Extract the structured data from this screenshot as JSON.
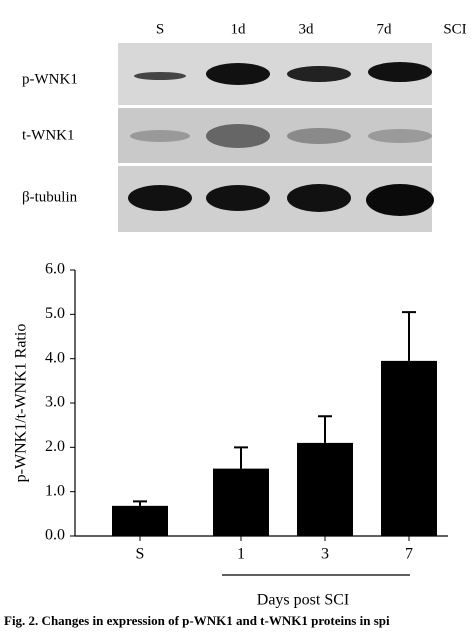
{
  "blot": {
    "lanes": [
      "S",
      "1d",
      "3d",
      "7d",
      "SCI"
    ],
    "rows": [
      "p-WNK1",
      "t-WNK1",
      "β-tubulin"
    ]
  },
  "chart_data": {
    "type": "bar",
    "categories": [
      "S",
      "1",
      "3",
      "7"
    ],
    "values": [
      0.68,
      1.52,
      2.1,
      3.95
    ],
    "errors": [
      0.1,
      0.48,
      0.6,
      1.1
    ],
    "color": "#000000",
    "ylabel": "p-WNK1/t-WNK1 Ratio",
    "xlabel": "Days post SCI",
    "ylim": [
      0,
      6
    ],
    "yticks": [
      {
        "value": 0,
        "label": "0.0"
      },
      {
        "value": 1,
        "label": "1.0"
      },
      {
        "value": 2,
        "label": "2.0"
      },
      {
        "value": 3,
        "label": "3.0"
      },
      {
        "value": 4,
        "label": "4.0"
      },
      {
        "value": 5,
        "label": "5.0"
      },
      {
        "value": 6,
        "label": "6.0"
      }
    ]
  },
  "caption": "Fig. 2. Changes in expression of p-WNK1 and t-WNK1 proteins in spi"
}
